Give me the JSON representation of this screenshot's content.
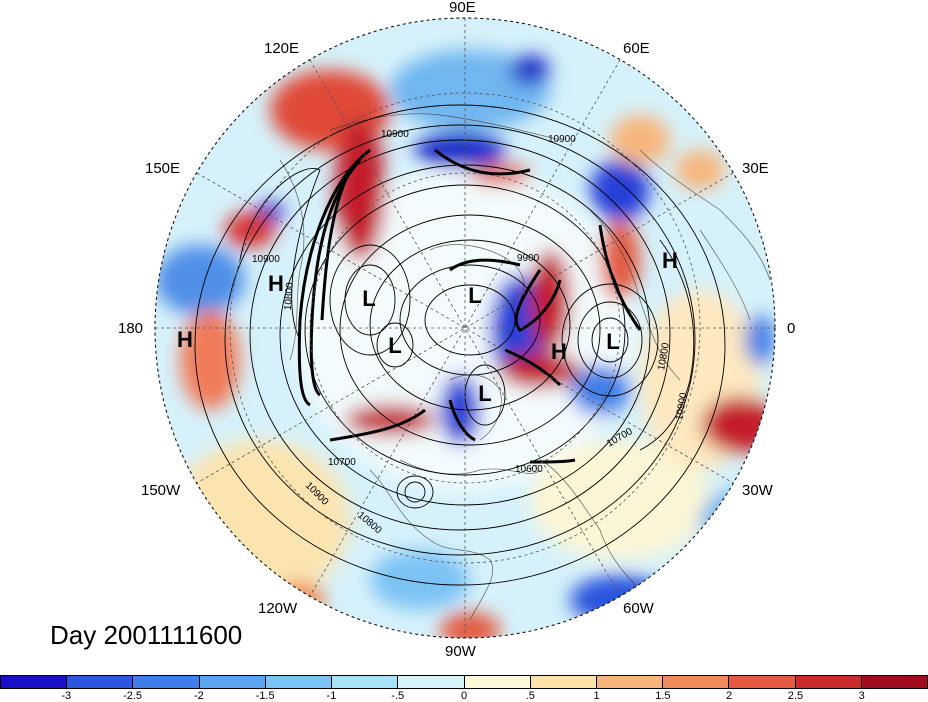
{
  "map": {
    "day_label": "Day 2001111600",
    "longitude_labels": {
      "lon_90e": "90E",
      "lon_60e": "60E",
      "lon_30e": "30E",
      "lon_0": "0",
      "lon_30w": "30W",
      "lon_60w": "60W",
      "lon_90w": "90W",
      "lon_120w": "120W",
      "lon_150w": "150W",
      "lon_180": "180",
      "lon_150e": "150E",
      "lon_120e": "120E"
    },
    "pressure_centers": [
      "H",
      "H",
      "L",
      "L",
      "L",
      "L",
      "H",
      "L",
      "H"
    ],
    "contour_labels": [
      "10900",
      "10900",
      "9900",
      "10800",
      "10700",
      "10600",
      "10700",
      "10800",
      "10900",
      "10900",
      "10800",
      "10900"
    ],
    "projection": "north polar stereographic",
    "colors": {
      "negative_strong": "#1010c8",
      "positive_strong": "#a8101f",
      "neutral": "#ffffff"
    }
  },
  "colorbar": {
    "ticks": [
      "-3",
      "-2.5",
      "-2",
      "-1.5",
      "-1",
      "-.5",
      "0",
      ".5",
      "1",
      "1.5",
      "2",
      "2.5",
      "3"
    ],
    "colors": [
      "#1a10c8",
      "#2c55e0",
      "#3f7ee8",
      "#5aa3f0",
      "#7cc3f5",
      "#a6e3f8",
      "#d8f4fb",
      "#fdf8d8",
      "#fbe2a6",
      "#f7b57c",
      "#f08a5a",
      "#e35a40",
      "#c92a2a",
      "#a10d1e"
    ]
  }
}
